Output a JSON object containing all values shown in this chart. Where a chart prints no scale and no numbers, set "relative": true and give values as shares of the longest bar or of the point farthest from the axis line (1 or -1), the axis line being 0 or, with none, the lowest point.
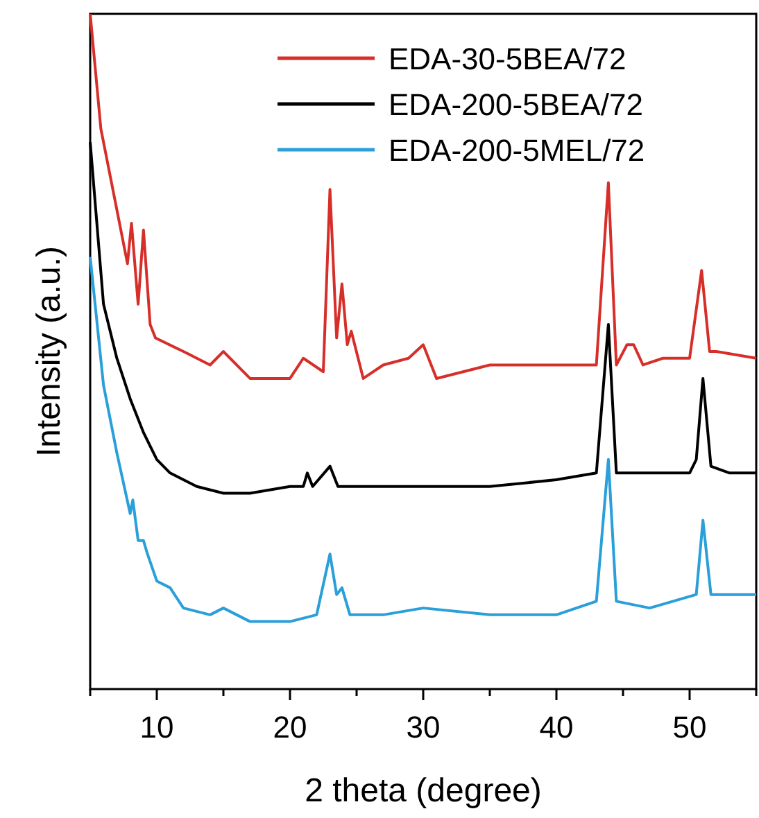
{
  "chart_data": {
    "type": "line",
    "relative": true,
    "xlabel": "2 theta (degree)",
    "ylabel": "Intensity (a.u.)",
    "xlim": [
      5,
      55
    ],
    "xticks": [
      {
        "value": 5,
        "label": null
      },
      10,
      {
        "value": 15,
        "label": null
      },
      20,
      {
        "value": 25,
        "label": null
      },
      30,
      {
        "value": 35,
        "label": null
      },
      40,
      {
        "value": 45,
        "label": null
      },
      50,
      {
        "value": 55,
        "label": null
      }
    ],
    "tick_labels": "x",
    "legend": "top right",
    "grid": false,
    "line_style": "solid",
    "series": [
      {
        "name": "EDA-30-5BEA/72",
        "color": "#d62f2a",
        "x": [
          5,
          5.8,
          7.8,
          8.1,
          8.6,
          9.0,
          9.5,
          9.9,
          12,
          14,
          15,
          17,
          20,
          21,
          22.5,
          23,
          23.5,
          23.9,
          24.3,
          24.6,
          25.5,
          27,
          28.9,
          30,
          31,
          35,
          40,
          43,
          43.9,
          44.5,
          45.3,
          45.8,
          46.5,
          48,
          50,
          50.9,
          51.5,
          52,
          55
        ],
        "values": [
          1,
          0.83,
          0.63,
          0.69,
          0.57,
          0.68,
          0.54,
          0.52,
          0.5,
          0.48,
          0.5,
          0.46,
          0.46,
          0.49,
          0.47,
          0.74,
          0.52,
          0.6,
          0.51,
          0.53,
          0.46,
          0.48,
          0.49,
          0.51,
          0.46,
          0.48,
          0.48,
          0.48,
          0.75,
          0.48,
          0.51,
          0.51,
          0.48,
          0.49,
          0.49,
          0.62,
          0.5,
          0.5,
          0.49
        ]
      },
      {
        "name": "EDA-200-5BEA/72",
        "color": "#000000",
        "x": [
          5,
          6,
          7,
          8,
          9,
          10,
          11,
          13,
          15,
          17,
          20,
          21,
          21.3,
          21.7,
          23,
          23.6,
          25,
          30,
          35,
          40,
          43,
          43.9,
          44.5,
          47,
          50,
          50.5,
          51,
          51.6,
          53,
          55
        ],
        "values": [
          0.81,
          0.57,
          0.49,
          0.43,
          0.38,
          0.34,
          0.32,
          0.3,
          0.29,
          0.29,
          0.3,
          0.3,
          0.32,
          0.3,
          0.33,
          0.3,
          0.3,
          0.3,
          0.3,
          0.31,
          0.32,
          0.54,
          0.32,
          0.32,
          0.32,
          0.34,
          0.46,
          0.33,
          0.32,
          0.32
        ]
      },
      {
        "name": "EDA-200-5MEL/72",
        "color": "#2a9fd8",
        "x": [
          5,
          6,
          7,
          8,
          8.2,
          8.6,
          9.0,
          9.3,
          10,
          11,
          12,
          14,
          15,
          17,
          20,
          22,
          23,
          23.5,
          23.9,
          24.5,
          27,
          30,
          35,
          40,
          43,
          43.9,
          44.5,
          47,
          50.5,
          51,
          51.6,
          53,
          55
        ],
        "values": [
          0.64,
          0.45,
          0.35,
          0.26,
          0.28,
          0.22,
          0.22,
          0.2,
          0.16,
          0.15,
          0.12,
          0.11,
          0.12,
          0.1,
          0.1,
          0.11,
          0.2,
          0.14,
          0.15,
          0.11,
          0.11,
          0.12,
          0.11,
          0.11,
          0.13,
          0.34,
          0.13,
          0.12,
          0.14,
          0.25,
          0.14,
          0.14,
          0.14
        ]
      }
    ]
  }
}
